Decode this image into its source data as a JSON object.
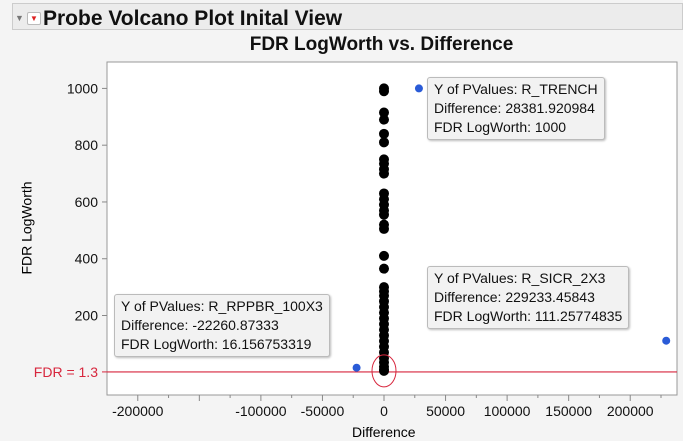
{
  "header": {
    "title": "Probe Volcano Plot Inital View"
  },
  "chart_data": {
    "type": "scatter",
    "title": "FDR LogWorth vs. Difference",
    "xlabel": "Difference",
    "ylabel": "FDR LogWorth",
    "xlim": [
      -225000,
      238000
    ],
    "ylim": [
      -80,
      1093
    ],
    "xticks": [
      -200000,
      -100000,
      -50000,
      0,
      50000,
      100000,
      150000,
      200000
    ],
    "yticks": [
      200,
      400,
      600,
      800,
      1000
    ],
    "grid": false,
    "reference_line": {
      "label": "FDR = 1.3",
      "y": 1.3,
      "color": "#d7263d"
    },
    "cluster_points": {
      "x": 0,
      "y": [
        1000,
        990,
        915,
        890,
        840,
        810,
        750,
        735,
        715,
        700,
        630,
        610,
        590,
        570,
        555,
        520,
        505,
        410,
        365,
        300,
        285,
        270,
        250,
        230,
        210,
        190,
        170,
        150,
        130,
        110,
        90,
        70,
        50,
        35,
        20,
        10,
        5
      ],
      "color": "#000000"
    },
    "highlighted_points": [
      {
        "label": "R_TRENCH",
        "x": 28381.920984,
        "y": 1000,
        "color": "#2a5bd7"
      },
      {
        "label": "R_SICR_2X3",
        "x": 229233.45843,
        "y": 111.25774835,
        "color": "#2a5bd7"
      },
      {
        "label": "R_RPPBR_100X3",
        "x": -22260.87333,
        "y": 16.156753319,
        "color": "#2a5bd7"
      }
    ],
    "tooltips": [
      {
        "l1": "Y of PValues: R_TRENCH",
        "l2": "Difference: 28381.920984",
        "l3": "FDR LogWorth: 1000"
      },
      {
        "l1": "Y of PValues: R_SICR_2X3",
        "l2": "Difference: 229233.45843",
        "l3": "FDR LogWorth: 111.25774835"
      },
      {
        "l1": "Y of PValues: R_RPPBR_100X3",
        "l2": "Difference: -22260.87333",
        "l3": "FDR LogWorth: 16.156753319"
      }
    ]
  }
}
